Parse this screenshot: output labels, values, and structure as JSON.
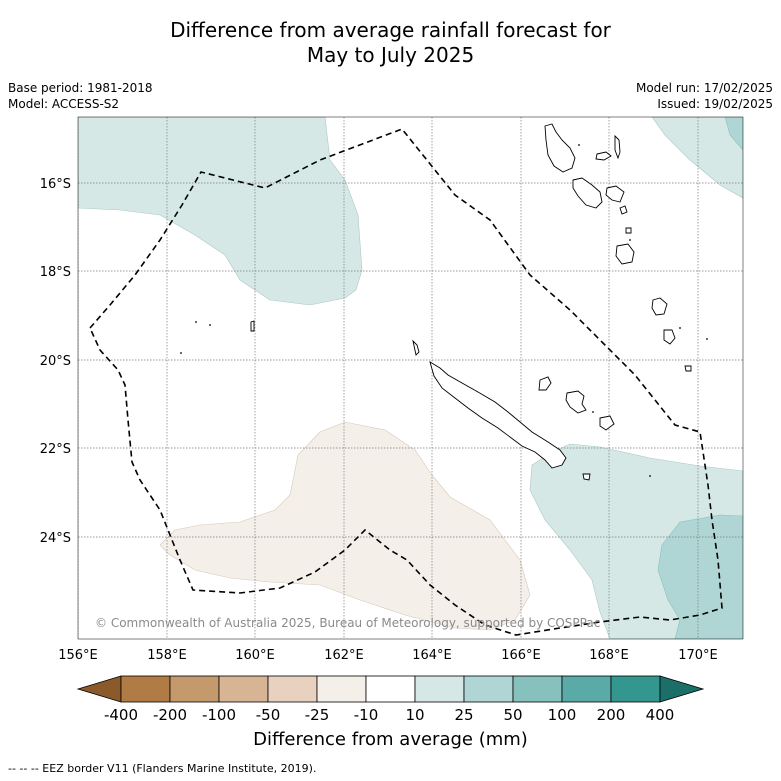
{
  "title_line1": "Difference from average rainfall forecast for",
  "title_line2": "May to July 2025",
  "base_period": "Base period: 1981-2018",
  "model": "Model: ACCESS-S2",
  "model_run": "Model run: 17/02/2025",
  "issued": "Issued: 19/02/2025",
  "copyright": "© Commonwealth of Australia 2025, Bureau of Meteorology, supported by COSPPac",
  "lat_labels": [
    "16°S",
    "18°S",
    "20°S",
    "22°S",
    "24°S"
  ],
  "lon_labels": [
    "156°E",
    "158°E",
    "160°E",
    "162°E",
    "164°E",
    "166°E",
    "168°E",
    "170°E"
  ],
  "colorbar": {
    "title": "Difference from average (mm)",
    "tick_labels": [
      "-400",
      "-200",
      "-100",
      "-50",
      "-25",
      "-10",
      "10",
      "25",
      "50",
      "100",
      "200",
      "400"
    ],
    "colors": [
      "#8c5a2a",
      "#b07b45",
      "#c49a6c",
      "#d6b494",
      "#e8d2bf",
      "#f5efe9",
      "#ffffff",
      "#d6e8e6",
      "#afd6d4",
      "#86c1be",
      "#5aaba8",
      "#33968f",
      "#1c6e69"
    ]
  },
  "footnote": "--  --  -- EEZ border V11 (Flanders Marine Institute, 2019).",
  "colors": {
    "wet_light": "#d6e8e6",
    "wet_mid": "#afd6d4",
    "dry_light": "#f5efe9",
    "border": "#000000",
    "grid": "#808080"
  }
}
